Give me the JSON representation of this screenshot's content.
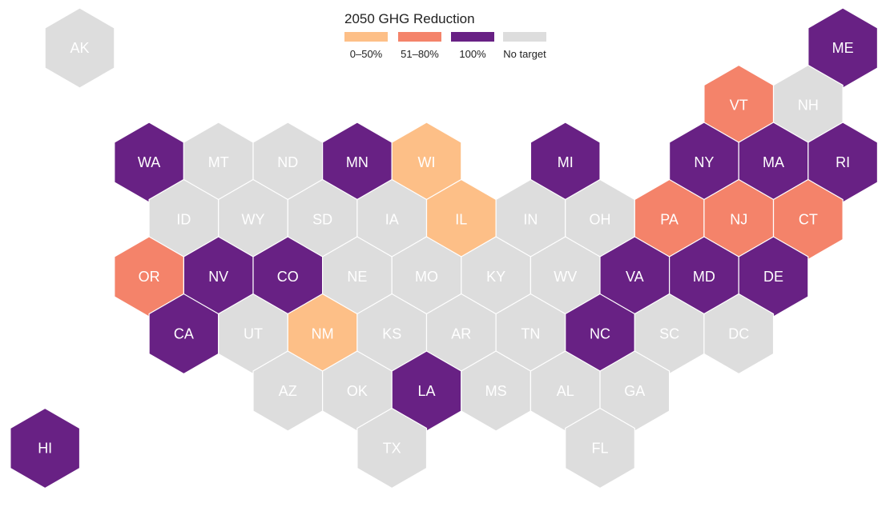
{
  "legend": {
    "title": "2050 GHG Reduction",
    "items": [
      {
        "key": "low",
        "label": "0–50%",
        "color": "#fdbf87"
      },
      {
        "key": "mid",
        "label": "51–80%",
        "color": "#f4836a"
      },
      {
        "key": "full",
        "label": "100%",
        "color": "#682184"
      },
      {
        "key": "none",
        "label": "No target",
        "color": "#dddddd"
      }
    ]
  },
  "states": [
    {
      "code": "AK",
      "category": "none"
    },
    {
      "code": "ME",
      "category": "full"
    },
    {
      "code": "VT",
      "category": "mid"
    },
    {
      "code": "NH",
      "category": "none"
    },
    {
      "code": "WA",
      "category": "full"
    },
    {
      "code": "MT",
      "category": "none"
    },
    {
      "code": "ND",
      "category": "none"
    },
    {
      "code": "MN",
      "category": "full"
    },
    {
      "code": "WI",
      "category": "low"
    },
    {
      "code": "MI",
      "category": "full"
    },
    {
      "code": "NY",
      "category": "full"
    },
    {
      "code": "MA",
      "category": "full"
    },
    {
      "code": "RI",
      "category": "full"
    },
    {
      "code": "ID",
      "category": "none"
    },
    {
      "code": "WY",
      "category": "none"
    },
    {
      "code": "SD",
      "category": "none"
    },
    {
      "code": "IA",
      "category": "none"
    },
    {
      "code": "IL",
      "category": "low"
    },
    {
      "code": "IN",
      "category": "none"
    },
    {
      "code": "OH",
      "category": "none"
    },
    {
      "code": "PA",
      "category": "mid"
    },
    {
      "code": "NJ",
      "category": "mid"
    },
    {
      "code": "CT",
      "category": "mid"
    },
    {
      "code": "OR",
      "category": "mid"
    },
    {
      "code": "NV",
      "category": "full"
    },
    {
      "code": "CO",
      "category": "full"
    },
    {
      "code": "NE",
      "category": "none"
    },
    {
      "code": "MO",
      "category": "none"
    },
    {
      "code": "KY",
      "category": "none"
    },
    {
      "code": "WV",
      "category": "none"
    },
    {
      "code": "VA",
      "category": "full"
    },
    {
      "code": "MD",
      "category": "full"
    },
    {
      "code": "DE",
      "category": "full"
    },
    {
      "code": "CA",
      "category": "full"
    },
    {
      "code": "UT",
      "category": "none"
    },
    {
      "code": "NM",
      "category": "low"
    },
    {
      "code": "KS",
      "category": "none"
    },
    {
      "code": "AR",
      "category": "none"
    },
    {
      "code": "TN",
      "category": "none"
    },
    {
      "code": "NC",
      "category": "full"
    },
    {
      "code": "SC",
      "category": "none"
    },
    {
      "code": "DC",
      "category": "none"
    },
    {
      "code": "AZ",
      "category": "none"
    },
    {
      "code": "OK",
      "category": "none"
    },
    {
      "code": "LA",
      "category": "full"
    },
    {
      "code": "MS",
      "category": "none"
    },
    {
      "code": "AL",
      "category": "none"
    },
    {
      "code": "GA",
      "category": "none"
    },
    {
      "code": "HI",
      "category": "full"
    },
    {
      "code": "TX",
      "category": "none"
    },
    {
      "code": "FL",
      "category": "none"
    }
  ]
}
